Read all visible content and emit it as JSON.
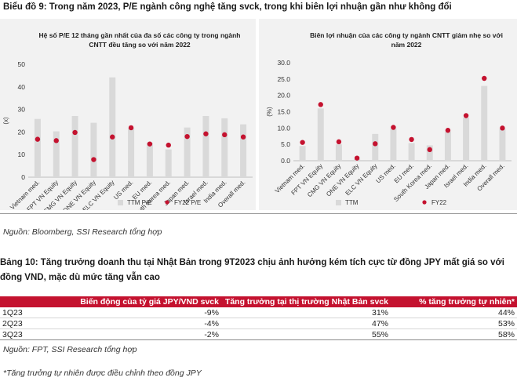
{
  "figure_title": "Biểu đồ 9: Trong năm 2023, P/E ngành công nghệ tăng svck, trong khi biên lợi nhuận gần như không đổi",
  "source_1": "Nguồn: Bloomberg, SSI Research tổng hợp",
  "table_title": "Bảng 10: Tăng trưởng doanh thu tại Nhật Bản trong 9T2023 chịu ảnh hưởng kém tích cực từ đồng JPY mất giá so với đồng VND, mặc dù mức tăng vẫn cao",
  "table": {
    "headers": [
      "",
      "Biến động của tỷ giá JPY/VND svck",
      "Tăng trưởng tại thị trường Nhật Bản svck",
      "% tăng trưởng tự nhiên*"
    ],
    "rows": [
      [
        "1Q23",
        "-9%",
        "31%",
        "44%"
      ],
      [
        "2Q23",
        "-4%",
        "47%",
        "53%"
      ],
      [
        "3Q23",
        "-2%",
        "55%",
        "58%"
      ]
    ]
  },
  "source_2": "Nguồn: FPT, SSI Research tổng hợp",
  "footnote": "*Tăng trưởng tự nhiên được điều chỉnh theo đồng JPY",
  "colors": {
    "bar": "#d9d9d9",
    "dot": "#c4122f",
    "header": "#c4122f"
  },
  "chart_data": [
    {
      "type": "bar",
      "title": "Hệ số P/E 12 tháng gần nhất của đa số các công ty trong ngành CNTT đều tăng so với năm 2022",
      "ylabel": "(x)",
      "ylim": [
        0,
        50
      ],
      "yticks": [
        0,
        10,
        20,
        30,
        40,
        50
      ],
      "categories": [
        "Vietnam med.",
        "FPT VN Equity",
        "CMG VN Equity",
        "ONE VN Equity",
        "ELC VN Equity",
        "US med.",
        "EU med.",
        "South Korea med.",
        "Japan med.",
        "Israel med.",
        "India med.",
        "Overall med."
      ],
      "series": [
        {
          "name": "TTM P/E",
          "kind": "bar",
          "values": [
            25.8,
            20.3,
            27.1,
            24.1,
            44.2,
            21.8,
            15.2,
            12.3,
            22.0,
            27.1,
            26.1,
            23.4
          ]
        },
        {
          "name": "FY22 P/E",
          "kind": "dot",
          "values": [
            16.8,
            16.2,
            19.8,
            7.8,
            17.8,
            21.9,
            14.7,
            14.2,
            18.0,
            19.2,
            18.8,
            17.8
          ]
        }
      ]
    },
    {
      "type": "bar",
      "title": "Biên lợi nhuận của các công ty ngành CNTT giảm nhẹ so với năm 2022",
      "ylabel": "(%)",
      "ylim": [
        0,
        30
      ],
      "yticks": [
        0.0,
        5.0,
        10.0,
        15.0,
        20.0,
        25.0,
        30.0
      ],
      "categories": [
        "Vietnam med.",
        "FPT VN Equity",
        "CMG VN Equity",
        "ONE VN Equity",
        "ELC VN Equity",
        "US med.",
        "EU med.",
        "South Korea med.",
        "Japan med.",
        "Israel med.",
        "India med.",
        "Overall med."
      ],
      "series": [
        {
          "name": "TTM",
          "kind": "bar",
          "values": [
            4.5,
            16.0,
            5.0,
            0.5,
            8.2,
            9.8,
            5.4,
            4.7,
            8.9,
            13.2,
            22.9,
            9.7
          ]
        },
        {
          "name": "FY22",
          "kind": "dot",
          "values": [
            5.6,
            17.2,
            5.8,
            0.8,
            5.2,
            10.2,
            6.5,
            3.4,
            9.3,
            13.8,
            25.2,
            10.0
          ]
        }
      ]
    }
  ]
}
